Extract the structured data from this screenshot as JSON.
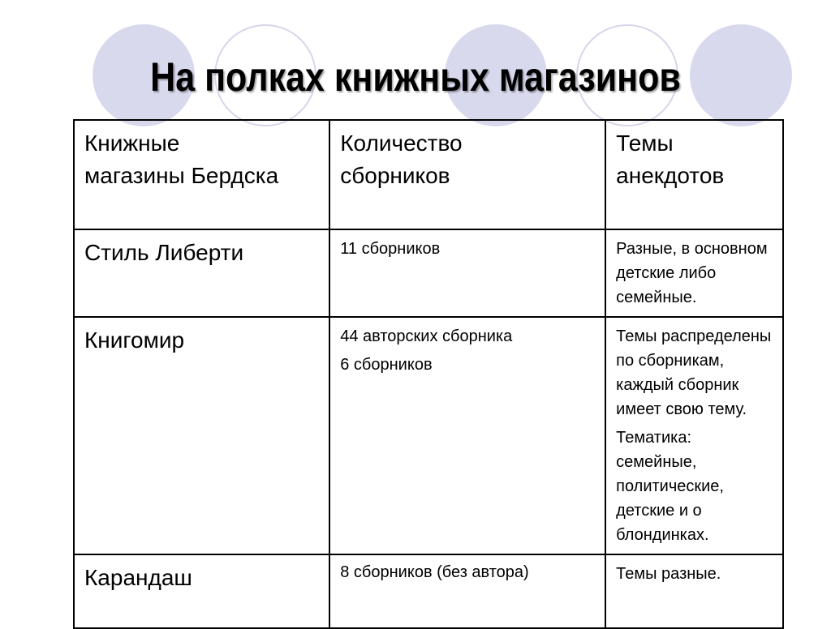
{
  "title": "На полках книжных магазинов",
  "decor_colors": {
    "circle_fill": "#d9d9ee",
    "circle_outline": "#d6d6ea"
  },
  "table": {
    "headers": [
      "Книжные магазины Бердска",
      "Количество сборников",
      "Темы анекдотов"
    ],
    "rows": [
      {
        "store": "Стиль Либерти",
        "count": [
          "11 сборников"
        ],
        "themes": [
          "Разные, в основном детские либо семейные."
        ]
      },
      {
        "store": "Книгомир",
        "count": [
          "44 авторских сборника",
          "6 сборников"
        ],
        "themes": [
          "Темы распределены по сборникам, каждый сборник имеет свою тему.",
          "Тематика: семейные, политические, детские и о блондинках."
        ]
      },
      {
        "store": "Карандаш",
        "count": [
          "8 сборников (без автора)"
        ],
        "themes": [
          "Темы разные."
        ]
      }
    ]
  }
}
